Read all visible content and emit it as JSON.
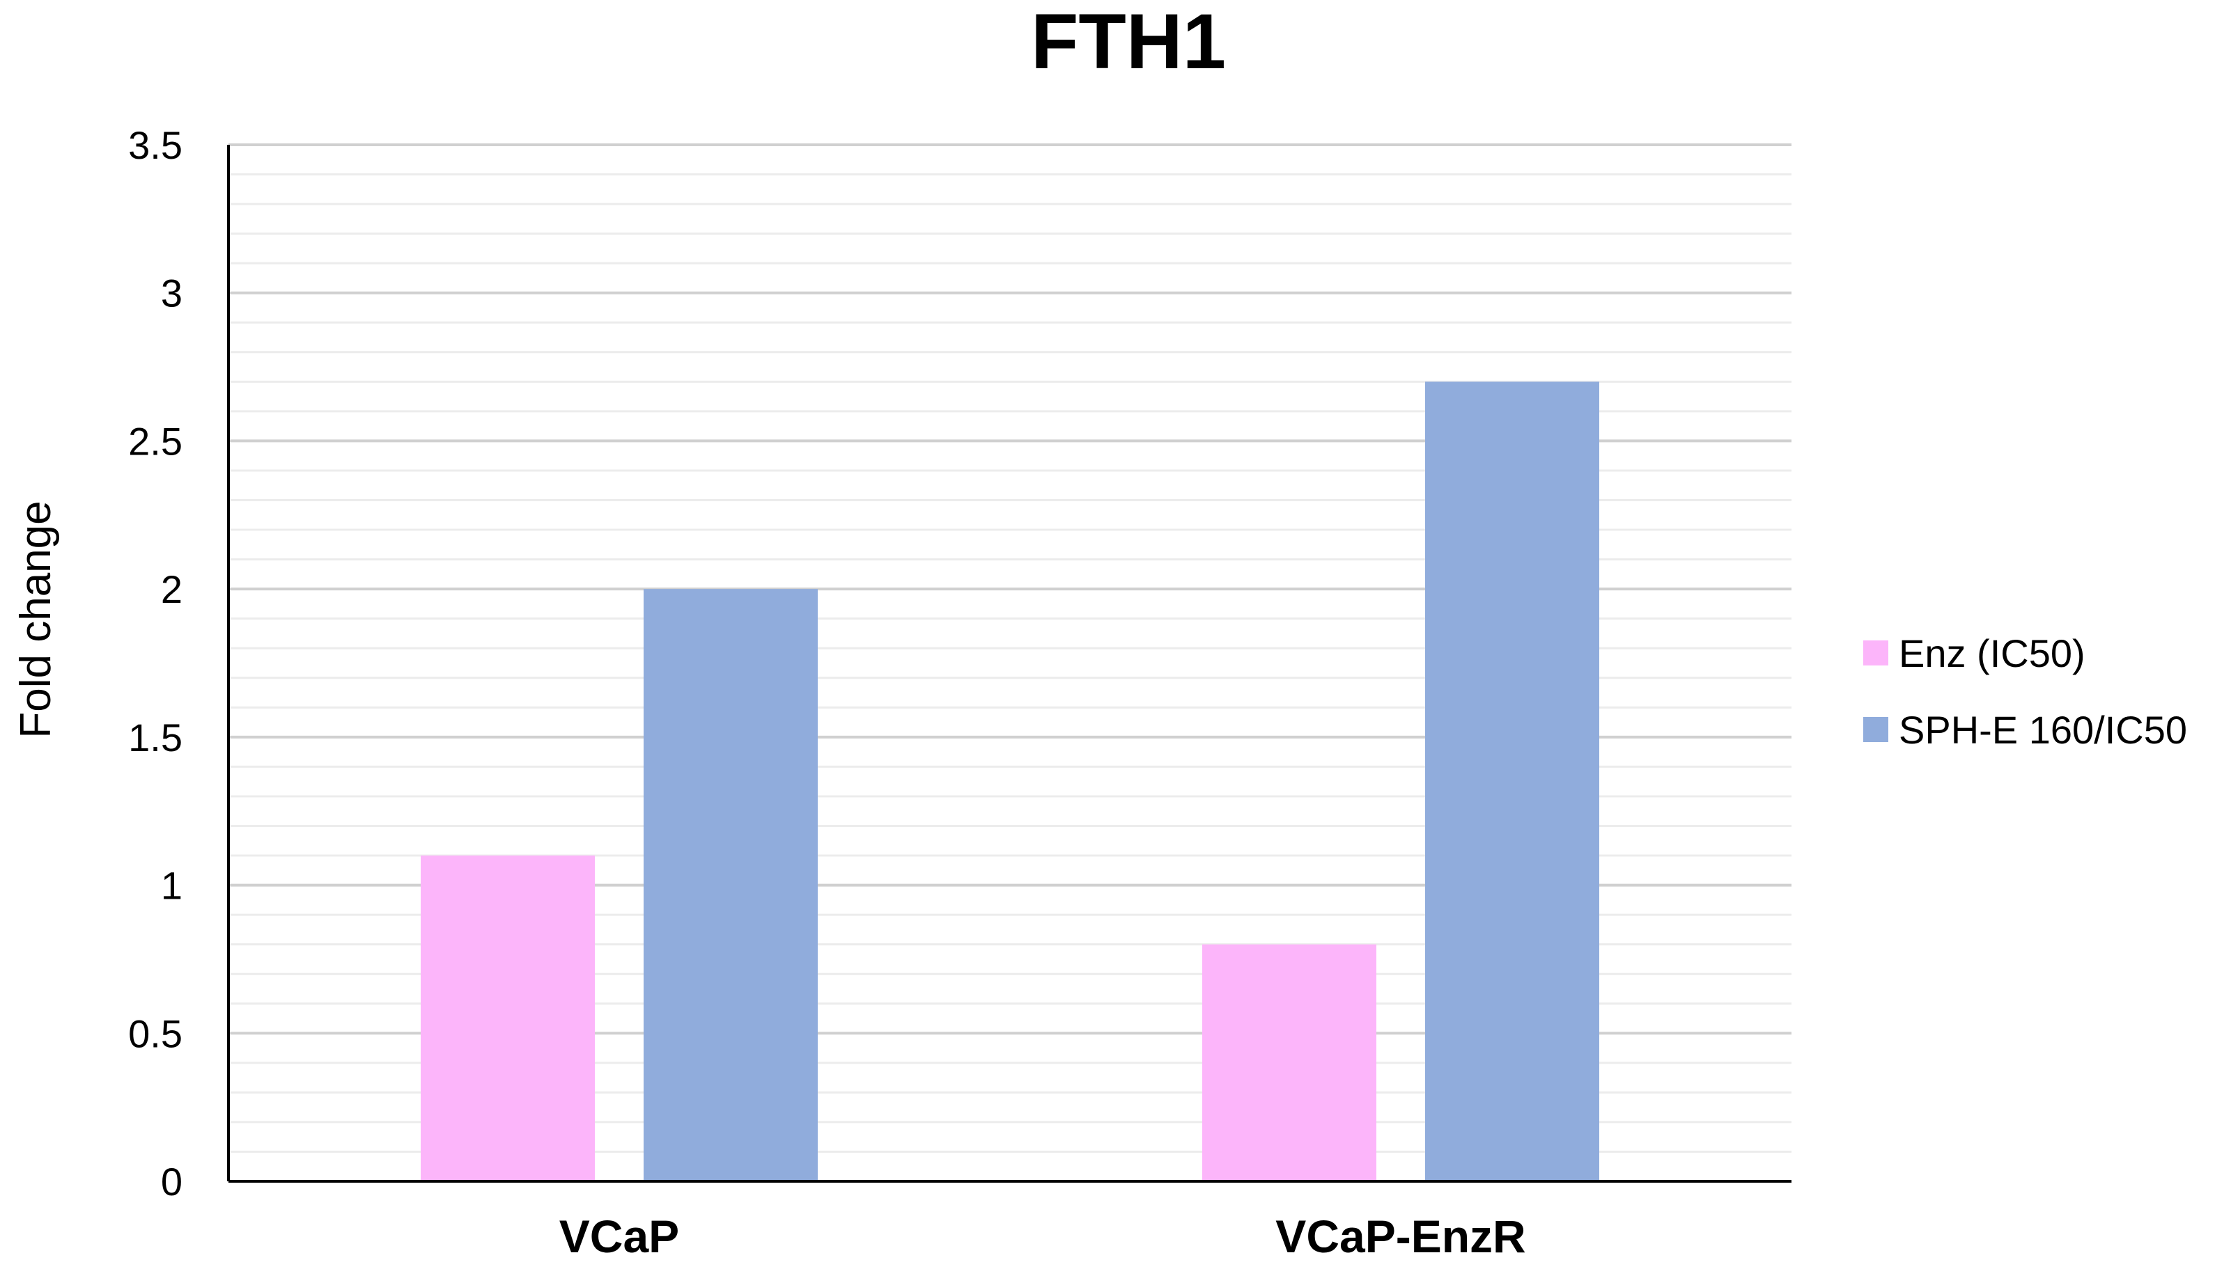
{
  "chart_data": {
    "type": "bar",
    "title": "FTH1",
    "xlabel": "",
    "ylabel": "Fold change",
    "categories": [
      "VCaP",
      "VCaP-EnzR"
    ],
    "series": [
      {
        "name": "Enz (IC50)",
        "values": [
          1.1,
          0.8
        ],
        "color": "#fcb5fa"
      },
      {
        "name": "SPH-E 160/IC50",
        "values": [
          2.0,
          2.7
        ],
        "color": "#90acdc"
      }
    ],
    "ylim": [
      0,
      3.5
    ],
    "y_ticks": [
      "0",
      "0.5",
      "1",
      "1.5",
      "2",
      "2.5",
      "3",
      "3.5"
    ],
    "grid": true,
    "legend_position": "right"
  }
}
